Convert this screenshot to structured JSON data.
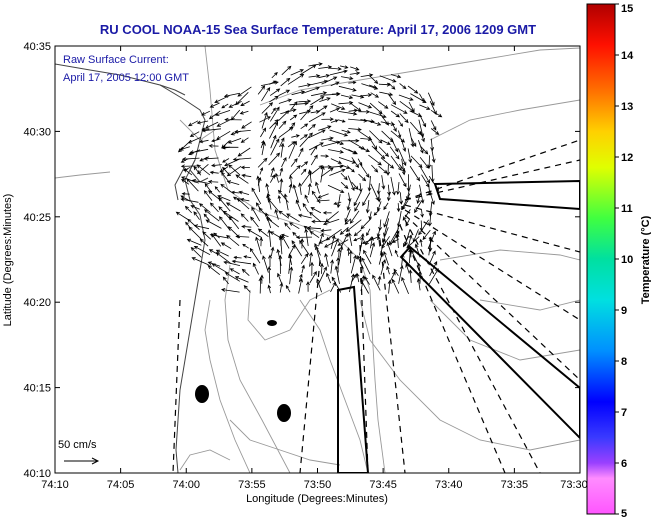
{
  "title": "RU COOL  NOAA-15  Sea Surface Temperature:  April 17, 2006 1209 GMT",
  "annotation": {
    "line1": "Raw Surface Current:",
    "line2": "April 17, 2005 12:00 GMT"
  },
  "scale_label": "50 cm/s",
  "axes": {
    "xlabel": "Longitude (Degrees:Minutes)",
    "ylabel": "Latitude (Degrees:Minutes)",
    "xticks": [
      "74:10",
      "74:05",
      "74:00",
      "73:55",
      "73:50",
      "73:45",
      "73:40",
      "73:35",
      "73:30"
    ],
    "yticks": [
      "40:35",
      "40:30",
      "40:25",
      "40:20",
      "40:15",
      "40:10"
    ]
  },
  "colorbar": {
    "label": "Temperature (°C)",
    "ticks": [
      "15",
      "14",
      "13",
      "12",
      "11",
      "10",
      "9",
      "8",
      "7",
      "6",
      "5"
    ],
    "min": 5,
    "max": 15
  },
  "colors": {
    "title": "#1a1aa6",
    "land": "#ffffff",
    "bathymetry": "#999999"
  }
}
